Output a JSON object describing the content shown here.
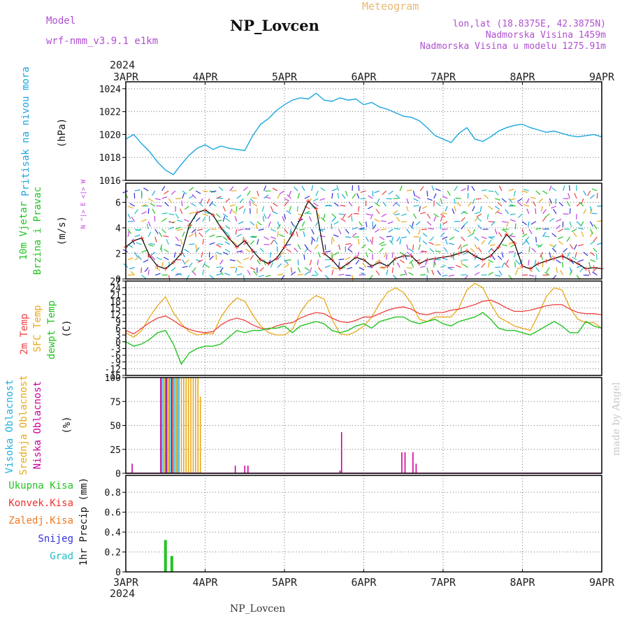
{
  "header": {
    "model_label": "Model",
    "model_name": "wrf-nmm_v3.9.1 e1km",
    "title": "NP_Lovcen",
    "meteogram": "Meteogram",
    "lonlat": "lon,lat (18.8375E, 42.3875N)",
    "elevation": "Nadmorska Visina 1459m",
    "elevation_model": "Nadmorska Visina u modelu 1275.91m",
    "footer_title": "NP_Lovcen",
    "credit": "made by Angel",
    "year_top": "2024",
    "year_bottom": "2024"
  },
  "colors": {
    "pressure": "#1aa6e0",
    "wind_label": "#22c422",
    "direction": "#c040e0",
    "temp2m": "#ee4040",
    "sfc": "#e8a818",
    "dewpt": "#22c422",
    "cloud_high": "#20b0e0",
    "cloud_mid": "#e8a818",
    "cloud_low": "#cc0099",
    "precip_total": "#22c422",
    "precip_conv": "#ee3030",
    "precip_frz": "#f07820",
    "precip_snow": "#3030dd",
    "precip_grad": "#20c0c0",
    "header_purple": "#b050d0",
    "header_orange": "#e8b870"
  },
  "chart_data": [
    {
      "type": "line",
      "ylabel": "Pritisak na nivou mora",
      "unit": "(hPa)",
      "x_ticks": [
        "3APR",
        "4APR",
        "5APR",
        "6APR",
        "7APR",
        "8APR",
        "9APR"
      ],
      "ylim": [
        1016,
        1024.6
      ],
      "yticks": [
        1016,
        1018,
        1020,
        1022,
        1024
      ],
      "grid": true,
      "series": [
        {
          "x": [
            3.0,
            3.1,
            3.2,
            3.3,
            3.4,
            3.5,
            3.6,
            3.7,
            3.8,
            3.9,
            4.0,
            4.1,
            4.2,
            4.3,
            4.4,
            4.5,
            4.6,
            4.7,
            4.8,
            4.9,
            5.0,
            5.1,
            5.2,
            5.3,
            5.4,
            5.5,
            5.6,
            5.7,
            5.8,
            5.9,
            6.0,
            6.1,
            6.2,
            6.3,
            6.4,
            6.5,
            6.6,
            6.7,
            6.8,
            6.9,
            7.0,
            7.1,
            7.2,
            7.3,
            7.4,
            7.5,
            7.6,
            7.7,
            7.8,
            7.9,
            8.0,
            8.1,
            8.2,
            8.3,
            8.4,
            8.5,
            8.6,
            8.7,
            8.8,
            8.9,
            9.0
          ],
          "values": [
            1019.6,
            1020.0,
            1019.2,
            1018.5,
            1017.6,
            1016.9,
            1016.5,
            1017.4,
            1018.2,
            1018.8,
            1019.1,
            1018.7,
            1019.0,
            1018.8,
            1018.7,
            1018.6,
            1019.9,
            1020.9,
            1021.4,
            1022.1,
            1022.6,
            1023.0,
            1023.2,
            1023.1,
            1023.6,
            1023.0,
            1022.9,
            1023.2,
            1023.0,
            1023.1,
            1022.6,
            1022.8,
            1022.4,
            1022.2,
            1021.9,
            1021.6,
            1021.5,
            1021.2,
            1020.6,
            1019.9,
            1019.6,
            1019.3,
            1020.1,
            1020.6,
            1019.6,
            1019.4,
            1019.8,
            1020.3,
            1020.6,
            1020.8,
            1020.9,
            1020.6,
            1020.4,
            1020.2,
            1020.3,
            1020.1,
            1019.9,
            1019.8,
            1019.9,
            1020.0,
            1019.8
          ]
        }
      ]
    },
    {
      "type": "line",
      "ylabel": "10m Vjetar Brzina i Pravac",
      "unit": "(m/s)",
      "direction_legend": "N ^|> E <|> W",
      "ylim": [
        0,
        7.5
      ],
      "yticks": [
        0,
        2,
        4,
        6
      ],
      "grid": true,
      "series": [
        {
          "name": "speed",
          "x": [
            3.0,
            3.1,
            3.2,
            3.3,
            3.4,
            3.5,
            3.6,
            3.7,
            3.8,
            3.9,
            4.0,
            4.1,
            4.2,
            4.3,
            4.4,
            4.5,
            4.6,
            4.7,
            4.8,
            4.9,
            5.0,
            5.1,
            5.2,
            5.3,
            5.4,
            5.5,
            5.6,
            5.7,
            5.8,
            5.9,
            6.0,
            6.1,
            6.2,
            6.3,
            6.4,
            6.5,
            6.6,
            6.7,
            6.8,
            6.9,
            7.0,
            7.1,
            7.2,
            7.3,
            7.4,
            7.5,
            7.6,
            7.7,
            7.8,
            7.9,
            8.0,
            8.1,
            8.2,
            8.3,
            8.4,
            8.5,
            8.6,
            8.7,
            8.8,
            8.9,
            9.0
          ],
          "values": [
            2.5,
            3.0,
            3.2,
            1.8,
            1.0,
            0.8,
            1.3,
            2.0,
            4.2,
            5.2,
            5.4,
            5.0,
            4.0,
            3.2,
            2.5,
            3.0,
            2.2,
            1.5,
            1.2,
            1.6,
            2.5,
            3.5,
            4.7,
            6.1,
            5.5,
            2.0,
            1.5,
            0.8,
            1.2,
            1.7,
            1.5,
            1.0,
            1.3,
            1.0,
            1.6,
            1.8,
            1.8,
            1.2,
            1.5,
            1.6,
            1.7,
            1.8,
            2.0,
            2.2,
            1.8,
            1.5,
            1.8,
            2.5,
            3.5,
            2.8,
            1.0,
            0.8,
            1.2,
            1.4,
            1.6,
            1.8,
            1.5,
            1.2,
            0.8,
            0.9,
            0.8
          ]
        }
      ]
    },
    {
      "type": "line",
      "ylabels": [
        "2m Temp",
        "SFC Temp",
        "dewpt Temp"
      ],
      "unit": "(C)",
      "ylim": [
        -15,
        27
      ],
      "yticks": [
        -15,
        -12,
        -9,
        -6,
        -3,
        0,
        3,
        6,
        9,
        12,
        15,
        18,
        21,
        24,
        27
      ],
      "grid": true,
      "series": [
        {
          "name": "2m Temp",
          "x": [
            3.0,
            3.1,
            3.2,
            3.3,
            3.4,
            3.5,
            3.6,
            3.7,
            3.8,
            3.9,
            4.0,
            4.1,
            4.2,
            4.3,
            4.4,
            4.5,
            4.6,
            4.7,
            4.8,
            4.9,
            5.0,
            5.1,
            5.2,
            5.3,
            5.4,
            5.5,
            5.6,
            5.7,
            5.8,
            5.9,
            6.0,
            6.1,
            6.2,
            6.3,
            6.4,
            6.5,
            6.6,
            6.7,
            6.8,
            6.9,
            7.0,
            7.1,
            7.2,
            7.3,
            7.4,
            7.5,
            7.6,
            7.7,
            7.8,
            7.9,
            8.0,
            8.1,
            8.2,
            8.3,
            8.4,
            8.5,
            8.6,
            8.7,
            8.8,
            8.9,
            9.0
          ],
          "values": [
            5,
            3.5,
            6,
            8.5,
            10.5,
            11.5,
            9.5,
            7,
            5.5,
            4.5,
            4,
            4.5,
            7.5,
            9.5,
            10.5,
            9.5,
            7.5,
            6,
            5.5,
            7,
            8,
            8.5,
            10.5,
            12,
            13,
            12.5,
            10.5,
            9,
            8.5,
            9.5,
            11,
            11,
            12.5,
            14,
            15,
            15.5,
            14.5,
            12.5,
            12,
            13,
            13,
            14,
            14.5,
            15.5,
            16.5,
            18,
            18.5,
            17,
            15,
            13.5,
            13.5,
            14,
            15,
            16,
            16.5,
            16.5,
            14.5,
            13,
            12.5,
            12.5,
            12
          ]
        },
        {
          "name": "SFC Temp",
          "x": [
            3.0,
            3.1,
            3.2,
            3.3,
            3.4,
            3.5,
            3.6,
            3.7,
            3.8,
            3.9,
            4.0,
            4.1,
            4.2,
            4.3,
            4.4,
            4.5,
            4.6,
            4.7,
            4.8,
            4.9,
            5.0,
            5.1,
            5.2,
            5.3,
            5.4,
            5.5,
            5.6,
            5.7,
            5.8,
            5.9,
            6.0,
            6.1,
            6.2,
            6.3,
            6.4,
            6.5,
            6.6,
            6.7,
            6.8,
            6.9,
            7.0,
            7.1,
            7.2,
            7.3,
            7.4,
            7.5,
            7.6,
            7.7,
            7.8,
            7.9,
            8.0,
            8.1,
            8.2,
            8.3,
            8.4,
            8.5,
            8.6,
            8.7,
            8.8,
            8.9,
            9.0
          ],
          "values": [
            4,
            2,
            5,
            11,
            16,
            20,
            13,
            8,
            4.5,
            3,
            3.5,
            3.5,
            11,
            16,
            19.5,
            18,
            12,
            7,
            4,
            3,
            3,
            5.5,
            13,
            18,
            20.5,
            19,
            10,
            3.5,
            3,
            4.5,
            7,
            11,
            17,
            22,
            24,
            22,
            17,
            10,
            9,
            11,
            11,
            11,
            15,
            23,
            26,
            24,
            17,
            11,
            9,
            7,
            6,
            5,
            12,
            20,
            24,
            23,
            15,
            10,
            8.5,
            8.5,
            6
          ]
        },
        {
          "name": "dewpt Temp",
          "x": [
            3.0,
            3.1,
            3.2,
            3.3,
            3.4,
            3.5,
            3.6,
            3.7,
            3.8,
            3.9,
            4.0,
            4.1,
            4.2,
            4.3,
            4.4,
            4.5,
            4.6,
            4.7,
            4.8,
            4.9,
            5.0,
            5.1,
            5.2,
            5.3,
            5.4,
            5.5,
            5.6,
            5.7,
            5.8,
            5.9,
            6.0,
            6.1,
            6.2,
            6.3,
            6.4,
            6.5,
            6.6,
            6.7,
            6.8,
            6.9,
            7.0,
            7.1,
            7.2,
            7.3,
            7.4,
            7.5,
            7.6,
            7.7,
            7.8,
            7.9,
            8.0,
            8.1,
            8.2,
            8.3,
            8.4,
            8.5,
            8.6,
            8.7,
            8.8,
            8.9,
            9.0
          ],
          "values": [
            0,
            -2,
            -1,
            1,
            4,
            5,
            -1,
            -10,
            -5,
            -3,
            -2,
            -2,
            -1,
            2,
            5,
            4,
            5,
            5,
            6,
            6,
            7,
            4,
            7,
            8,
            9,
            8,
            5,
            4,
            5,
            7,
            8,
            6,
            9,
            10,
            11,
            11,
            9,
            8,
            9,
            10,
            8,
            7,
            9,
            10,
            11,
            13,
            10,
            6,
            5,
            5,
            4,
            3,
            5,
            7,
            9,
            7,
            4,
            4,
            9,
            7,
            6
          ]
        }
      ]
    },
    {
      "type": "bar",
      "ylabels": [
        "Visoka Oblacnost",
        "Srednja Oblacnost",
        "Niska Oblacnost"
      ],
      "unit": "(%)",
      "ylim": [
        0,
        100
      ],
      "yticks": [
        0,
        25,
        50,
        75,
        100
      ],
      "grid": true,
      "series": [
        {
          "name": "Visoka Oblacnost",
          "x": [
            3.45,
            3.47,
            3.5,
            3.52,
            3.55,
            3.57,
            3.6,
            3.62,
            3.65,
            3.67
          ],
          "values": [
            100,
            100,
            100,
            100,
            100,
            100,
            100,
            100,
            100,
            100
          ]
        },
        {
          "name": "Srednja Oblacnost",
          "x": [
            3.49,
            3.54,
            3.59,
            3.64,
            3.7,
            3.73,
            3.76,
            3.79,
            3.82,
            3.85,
            3.88,
            3.91,
            3.94
          ],
          "values": [
            100,
            100,
            100,
            100,
            100,
            100,
            100,
            100,
            100,
            100,
            100,
            100,
            80
          ]
        },
        {
          "name": "Niska Oblacnost",
          "x": [
            3.08,
            3.44,
            3.51,
            3.58,
            4.38,
            4.5,
            4.54,
            5.7,
            5.72,
            6.48,
            6.52,
            6.62,
            6.66
          ],
          "values": [
            10,
            100,
            100,
            100,
            8,
            8,
            8,
            3,
            43,
            22,
            22,
            22,
            10
          ]
        }
      ]
    },
    {
      "type": "bar",
      "ylabels": [
        "Ukupna Kisa",
        "Konvek.Kisa",
        "Zaledj.Kisa",
        "Snijeg",
        "Grad"
      ],
      "unit": "1hr Precip (mm)",
      "ylim": [
        0,
        0.97
      ],
      "yticks": [
        0,
        0.2,
        0.4,
        0.6,
        0.8
      ],
      "grid": true,
      "series": [
        {
          "name": "Ukupna Kisa",
          "x": [
            3.5,
            3.58
          ],
          "values": [
            0.32,
            0.16
          ]
        }
      ]
    }
  ]
}
